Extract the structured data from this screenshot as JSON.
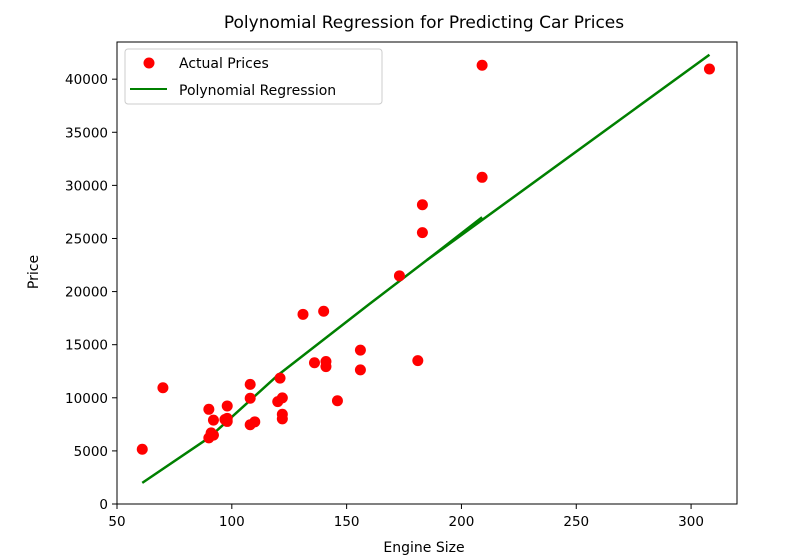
{
  "chart_data": {
    "type": "scatter",
    "title": "Polynomial Regression for Predicting Car Prices",
    "xlabel": "Engine Size",
    "ylabel": "Price",
    "xlim": [
      50,
      320
    ],
    "ylim": [
      0,
      43500
    ],
    "x_ticks": [
      50,
      100,
      150,
      200,
      250,
      300
    ],
    "y_ticks": [
      0,
      5000,
      10000,
      15000,
      20000,
      25000,
      30000,
      35000,
      40000
    ],
    "grid": false,
    "legend_position": "upper left",
    "series": [
      {
        "name": "Actual Prices",
        "kind": "scatter",
        "color": "#ff0000",
        "points": [
          [
            61,
            5151
          ],
          [
            70,
            10945
          ],
          [
            90,
            8916
          ],
          [
            90,
            6229
          ],
          [
            91,
            6692
          ],
          [
            92,
            7898
          ],
          [
            92,
            6488
          ],
          [
            97,
            7957
          ],
          [
            98,
            9233
          ],
          [
            98,
            7775
          ],
          [
            98,
            8058
          ],
          [
            108,
            11259
          ],
          [
            108,
            9960
          ],
          [
            108,
            7463
          ],
          [
            110,
            7738
          ],
          [
            120,
            9639
          ],
          [
            121,
            11850
          ],
          [
            122,
            8449
          ],
          [
            122,
            8013
          ],
          [
            122,
            9988
          ],
          [
            131,
            17859
          ],
          [
            136,
            13295
          ],
          [
            140,
            18150
          ],
          [
            141,
            13415
          ],
          [
            141,
            12940
          ],
          [
            146,
            9720
          ],
          [
            156,
            14489
          ],
          [
            156,
            12629
          ],
          [
            173,
            21485
          ],
          [
            181,
            13499
          ],
          [
            183,
            28176
          ],
          [
            183,
            25552
          ],
          [
            209,
            41315
          ],
          [
            209,
            30760
          ],
          [
            308,
            40960
          ]
        ]
      },
      {
        "name": "Polynomial Regression",
        "kind": "line",
        "color": "#008000",
        "points": [
          [
            61,
            1990
          ],
          [
            90,
            6230
          ],
          [
            120,
            12120
          ],
          [
            160,
            18840
          ],
          [
            185,
            22970
          ],
          [
            209,
            27000
          ]
        ],
        "extension": [
          [
            185,
            22970
          ],
          [
            308,
            42300
          ]
        ]
      }
    ]
  }
}
